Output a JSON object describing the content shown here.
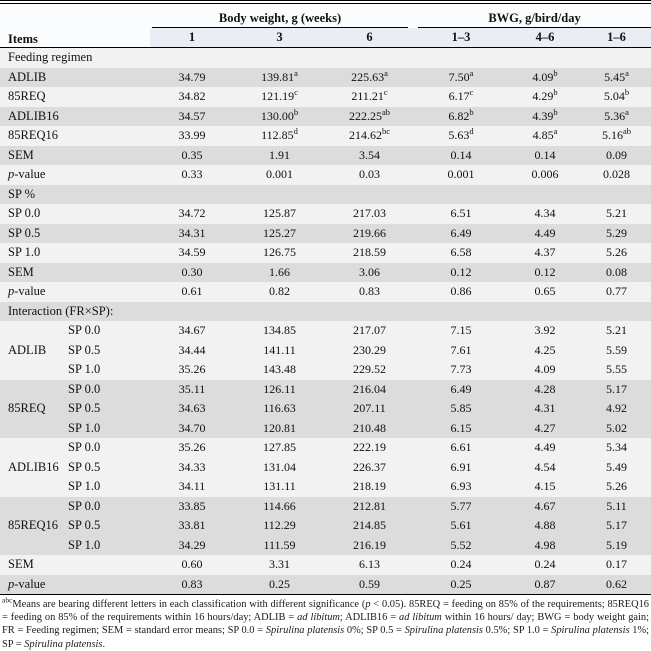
{
  "colors": {
    "row_gray": "#dcdcdc",
    "row_light": "#f2f2f2",
    "subheader_bg": "#eaeef4",
    "header_bg": "#fbfcfd",
    "border": "#000000"
  },
  "table": {
    "header": {
      "items": "Items",
      "group1": "Body weight, g (weeks)",
      "group2": "BWG, g/bird/day",
      "sub": [
        "1",
        "3",
        "6",
        "1–3",
        "4–6",
        "1–6"
      ]
    },
    "rows": [
      {
        "type": "section",
        "shade": "w",
        "label": [
          {
            "t": "Feeding regimen"
          }
        ]
      },
      {
        "type": "data",
        "shade": "g",
        "label": [
          {
            "t": "ADLIB"
          }
        ],
        "cells": [
          "34.79",
          "139.81^a",
          "225.63^a",
          "7.50^a",
          "4.09^b",
          "5.45^a"
        ]
      },
      {
        "type": "data",
        "shade": "w",
        "label": [
          {
            "t": "85REQ"
          }
        ],
        "cells": [
          "34.82",
          "121.19^c",
          "211.21^c",
          "6.17^c",
          "4.29^b",
          "5.04^b"
        ]
      },
      {
        "type": "data",
        "shade": "g",
        "label": [
          {
            "t": "ADLIB16"
          }
        ],
        "cells": [
          "34.57",
          "130.00^b",
          "222.25^ab",
          "6.82^b",
          "4.39^b",
          "5.36^a"
        ]
      },
      {
        "type": "data",
        "shade": "w",
        "label": [
          {
            "t": "85REQ16"
          }
        ],
        "cells": [
          "33.99",
          "112.85^d",
          "214.62^bc",
          "5.63^d",
          "4.85^a",
          "5.16^ab"
        ]
      },
      {
        "type": "data",
        "shade": "g",
        "label": [
          {
            "t": "SEM"
          }
        ],
        "cells": [
          "0.35",
          "1.91",
          "3.54",
          "0.14",
          "0.14",
          "0.09"
        ]
      },
      {
        "type": "data",
        "shade": "w",
        "label": [
          {
            "t": "p",
            "i": true
          },
          {
            "t": "-value"
          }
        ],
        "cells": [
          "0.33",
          "0.001",
          "0.03",
          "0.001",
          "0.006",
          "0.028"
        ]
      },
      {
        "type": "section",
        "shade": "g",
        "label": [
          {
            "t": "SP %"
          }
        ]
      },
      {
        "type": "data",
        "shade": "w",
        "label": [
          {
            "t": "SP 0.0"
          }
        ],
        "cells": [
          "34.72",
          "125.87",
          "217.03",
          "6.51",
          "4.34",
          "5.21"
        ]
      },
      {
        "type": "data",
        "shade": "g",
        "label": [
          {
            "t": "SP 0.5"
          }
        ],
        "cells": [
          "34.31",
          "125.27",
          "219.66",
          "6.49",
          "4.49",
          "5.29"
        ]
      },
      {
        "type": "data",
        "shade": "w",
        "label": [
          {
            "t": "SP 1.0"
          }
        ],
        "cells": [
          "34.59",
          "126.75",
          "218.59",
          "6.58",
          "4.37",
          "5.26"
        ]
      },
      {
        "type": "data",
        "shade": "g",
        "label": [
          {
            "t": "SEM"
          }
        ],
        "cells": [
          "0.30",
          "1.66",
          "3.06",
          "0.12",
          "0.12",
          "0.08"
        ]
      },
      {
        "type": "data",
        "shade": "w",
        "label": [
          {
            "t": "p",
            "i": true
          },
          {
            "t": "-value"
          }
        ],
        "cells": [
          "0.61",
          "0.82",
          "0.83",
          "0.86",
          "0.65",
          "0.77"
        ]
      },
      {
        "type": "section",
        "shade": "g",
        "label": [
          {
            "t": "Interaction (FR×SP):"
          }
        ]
      },
      {
        "type": "idata",
        "shade": "w",
        "fr": "",
        "sp": "SP 0.0",
        "cells": [
          "34.67",
          "134.85",
          "217.07",
          "7.15",
          "3.92",
          "5.21"
        ]
      },
      {
        "type": "idata",
        "shade": "w",
        "fr": "ADLIB",
        "sp": "SP 0.5",
        "cells": [
          "34.44",
          "141.11",
          "230.29",
          "7.61",
          "4.25",
          "5.59"
        ]
      },
      {
        "type": "idata",
        "shade": "w",
        "fr": "",
        "sp": "SP 1.0",
        "cells": [
          "35.26",
          "143.48",
          "229.52",
          "7.73",
          "4.09",
          "5.55"
        ]
      },
      {
        "type": "idata",
        "shade": "g",
        "fr": "",
        "sp": "SP 0.0",
        "cells": [
          "35.11",
          "126.11",
          "216.04",
          "6.49",
          "4.28",
          "5.17"
        ]
      },
      {
        "type": "idata",
        "shade": "g",
        "fr": "85REQ",
        "sp": "SP 0.5",
        "cells": [
          "34.63",
          "116.63",
          "207.11",
          "5.85",
          "4.31",
          "4.92"
        ]
      },
      {
        "type": "idata",
        "shade": "g",
        "fr": "",
        "sp": "SP 1.0",
        "cells": [
          "34.70",
          "120.81",
          "210.48",
          "6.15",
          "4.27",
          "5.02"
        ]
      },
      {
        "type": "idata",
        "shade": "w",
        "fr": "",
        "sp": "SP 0.0",
        "cells": [
          "35.26",
          "127.85",
          "222.19",
          "6.61",
          "4.49",
          "5.34"
        ]
      },
      {
        "type": "idata",
        "shade": "w",
        "fr": "ADLIB16",
        "sp": "SP 0.5",
        "cells": [
          "34.33",
          "131.04",
          "226.37",
          "6.91",
          "4.54",
          "5.49"
        ]
      },
      {
        "type": "idata",
        "shade": "w",
        "fr": "",
        "sp": "SP 1.0",
        "cells": [
          "34.11",
          "131.11",
          "218.19",
          "6.93",
          "4.15",
          "5.26"
        ]
      },
      {
        "type": "idata",
        "shade": "g",
        "fr": "",
        "sp": "SP 0.0",
        "cells": [
          "33.85",
          "114.66",
          "212.81",
          "5.77",
          "4.67",
          "5.11"
        ]
      },
      {
        "type": "idata",
        "shade": "g",
        "fr": "85REQ16",
        "sp": "SP 0.5",
        "cells": [
          "33.81",
          "112.29",
          "214.85",
          "5.61",
          "4.88",
          "5.17"
        ]
      },
      {
        "type": "idata",
        "shade": "g",
        "fr": "",
        "sp": "SP 1.0",
        "cells": [
          "34.29",
          "111.59",
          "216.19",
          "5.52",
          "4.98",
          "5.19"
        ]
      },
      {
        "type": "data",
        "shade": "w",
        "label": [
          {
            "t": "SEM"
          }
        ],
        "cells": [
          "0.60",
          "3.31",
          "6.13",
          "0.24",
          "0.24",
          "0.17"
        ]
      },
      {
        "type": "data",
        "shade": "g",
        "label": [
          {
            "t": "p",
            "i": true
          },
          {
            "t": "-value"
          }
        ],
        "cells": [
          "0.83",
          "0.25",
          "0.59",
          "0.25",
          "0.87",
          "0.62"
        ]
      }
    ]
  },
  "footnote": {
    "segments": [
      {
        "t": "abc",
        "sup": true
      },
      {
        "t": "Means are bearing different letters in each classification with different significance ("
      },
      {
        "t": "p",
        "i": true
      },
      {
        "t": " < 0.05). 85REQ = feeding on 85% of the requirements; 85REQ16 = feeding on 85% of the requirements within 16 hours/day; ADLIB = "
      },
      {
        "t": "ad libitum",
        "i": true
      },
      {
        "t": "; ADLIB16 = "
      },
      {
        "t": "ad libitum",
        "i": true
      },
      {
        "t": " within 16 hours/ day; BWG = body weight gain; FR = Feeding regimen; SEM = standard error means; SP 0.0 = "
      },
      {
        "t": "Spirulina platensis",
        "i": true
      },
      {
        "t": " 0%; SP 0.5 = "
      },
      {
        "t": "Spirulina platensis",
        "i": true
      },
      {
        "t": " 0.5%; SP 1.0 = "
      },
      {
        "t": "Spirulina platensis",
        "i": true
      },
      {
        "t": " 1%; SP = "
      },
      {
        "t": "Spirulina platensis",
        "i": true
      },
      {
        "t": "."
      }
    ]
  }
}
